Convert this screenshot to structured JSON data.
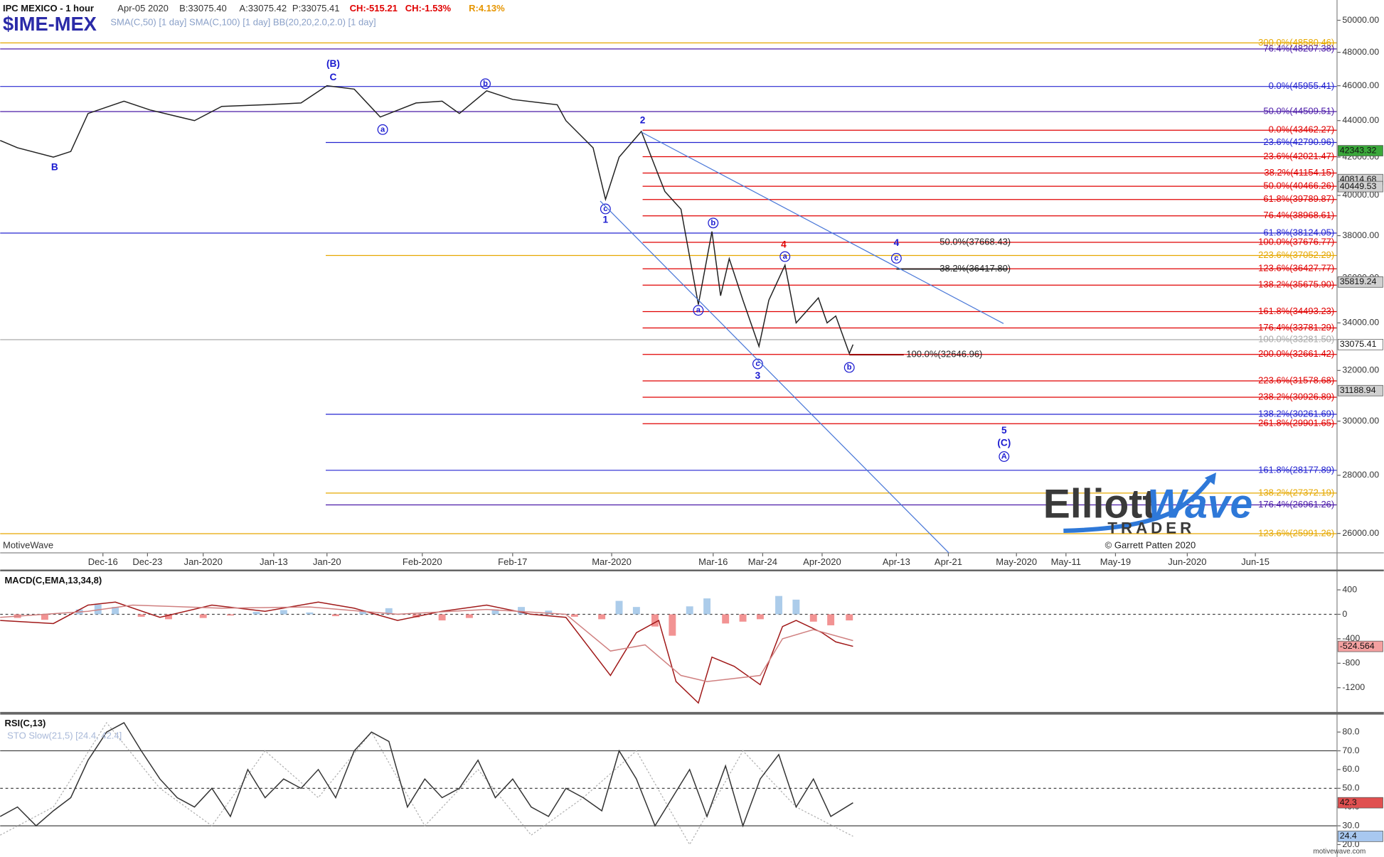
{
  "header": {
    "title": "IPC MEXICO - 1 hour",
    "date": "Apr-05 2020",
    "bid": "B:33075.40",
    "ask": "A:33075.42",
    "price": "P:33075.41",
    "change": "CH:-515.21",
    "change_pct": "CH:-1.53%",
    "range": "R:4.13%",
    "symbol": "$IME-MEX",
    "studies": "SMA(C,50) [1 day] SMA(C,100) [1 day] BB(20,20,2.0,2.0) [1 day]"
  },
  "watermark": "MotiveWave",
  "logo": {
    "elliott": "Elliott",
    "wave": "Wave",
    "trader": "TRADER"
  },
  "copyright": "© Garrett Patten 2020",
  "site": "motivewave.com",
  "chart_data": [
    {
      "type": "line",
      "log": true,
      "xlim": [
        0,
        1080
      ],
      "xticks": [
        {
          "value": 83,
          "label": "Dec-16"
        },
        {
          "value": 119,
          "label": "Dec-23"
        },
        {
          "value": 164,
          "label": "Jan-2020"
        },
        {
          "value": 221,
          "label": "Jan-13"
        },
        {
          "value": 264,
          "label": "Jan-20"
        },
        {
          "value": 341,
          "label": "Feb-2020"
        },
        {
          "value": 414,
          "label": "Feb-17"
        },
        {
          "value": 494,
          "label": "Mar-2020"
        },
        {
          "value": 576,
          "label": "Mar-16"
        },
        {
          "value": 616,
          "label": "Mar-24"
        },
        {
          "value": 664,
          "label": "Apr-2020"
        },
        {
          "value": 724,
          "label": "Apr-13"
        },
        {
          "value": 766,
          "label": "Apr-21"
        },
        {
          "value": 821,
          "label": "May-2020"
        },
        {
          "value": 861,
          "label": "May-11"
        },
        {
          "value": 901,
          "label": "May-19"
        },
        {
          "value": 959,
          "label": "Jun-2020"
        },
        {
          "value": 1014,
          "label": "Jun-15"
        }
      ],
      "ylim": [
        25365,
        51309
      ],
      "yticks": [
        {
          "value": 26000,
          "label": "26000.00"
        },
        {
          "value": 28000,
          "label": "28000.00"
        },
        {
          "value": 30000,
          "label": "30000.00"
        },
        {
          "value": 32000,
          "label": "32000.00"
        },
        {
          "value": 34000,
          "label": "34000.00"
        },
        {
          "value": 36000,
          "label": "36000.00"
        },
        {
          "value": 38000,
          "label": "38000.00"
        },
        {
          "value": 40000,
          "label": "40000.00"
        },
        {
          "value": 42000,
          "label": "42000.00"
        },
        {
          "value": 44000,
          "label": "44000.00"
        },
        {
          "value": 46000,
          "label": "46000.00"
        },
        {
          "value": 48000,
          "label": "48000.00"
        },
        {
          "value": 50000,
          "label": "50000.00"
        }
      ],
      "series": [
        {
          "style": "line",
          "color": "#222222",
          "x": [
            0,
            14,
            43,
            57,
            71,
            100,
            121,
            157,
            179,
            214,
            243,
            264,
            286,
            307,
            336,
            357,
            371,
            393,
            414,
            450,
            457,
            479,
            489,
            500,
            518,
            532,
            537,
            550,
            564,
            575,
            582,
            589,
            600,
            613,
            621,
            634,
            643,
            661,
            668,
            675,
            686,
            689
          ],
          "values": [
            42900,
            42500,
            42000,
            42300,
            44400,
            45100,
            44600,
            44000,
            44800,
            44900,
            45000,
            46000,
            45800,
            44200,
            45000,
            45100,
            44400,
            45700,
            45200,
            44900,
            44000,
            42500,
            39800,
            42000,
            43400,
            41000,
            40200,
            39300,
            34800,
            38200,
            35200,
            36900,
            35000,
            33000,
            35000,
            36600,
            34000,
            35100,
            34000,
            34300,
            32700,
            33075.41
          ]
        }
      ],
      "levels": [
        {
          "value": 48580.46,
          "label": "300.0%(48580.46)",
          "color": "#e6a800",
          "from": 0
        },
        {
          "value": 48207.38,
          "label": "76.4%(48207.38)",
          "color": "#4b1aa8",
          "from": 0
        },
        {
          "value": 45955.41,
          "label": "0.0%(45955.41)",
          "color": "#2424d0",
          "from": 0
        },
        {
          "value": 44509.51,
          "label": "50.0%(44509.51)",
          "color": "#4b1aa8",
          "from": 0
        },
        {
          "value": 43462.27,
          "label": "0.0%(43462.27)",
          "color": "#e00000",
          "from": 519
        },
        {
          "value": 42790.96,
          "label": "23.6%(42790.96)",
          "color": "#2424d0",
          "from": 263
        },
        {
          "value": 42021.47,
          "label": "23.6%(42021.47)",
          "color": "#e00000",
          "from": 519
        },
        {
          "value": 41154.15,
          "label": "38.2%(41154.15)",
          "color": "#e00000",
          "from": 519
        },
        {
          "value": 40466.26,
          "label": "50.0%(40466.26)",
          "color": "#e00000",
          "from": 519
        },
        {
          "value": 39789.87,
          "label": "61.8%(39789.87)",
          "color": "#e00000",
          "from": 519
        },
        {
          "value": 38968.61,
          "label": "76.4%(38968.61)",
          "color": "#e00000",
          "from": 519
        },
        {
          "value": 38124.05,
          "label": "61.8%(38124.05)",
          "color": "#2424d0",
          "from": 0
        },
        {
          "value": 37676.77,
          "label": "100.0%(37676.77)",
          "color": "#e00000",
          "from": 519
        },
        {
          "value": 37052.29,
          "label": "223.6%(37052.29)",
          "color": "#e6a800",
          "from": 263
        },
        {
          "value": 36427.77,
          "label": "123.6%(36427.77)",
          "color": "#e00000",
          "from": 519
        },
        {
          "value": 35675.9,
          "label": "138.2%(35675.90)",
          "color": "#e00000",
          "from": 519
        },
        {
          "value": 34493.23,
          "label": "161.8%(34493.23)",
          "color": "#e00000",
          "from": 519
        },
        {
          "value": 33781.29,
          "label": "176.4%(33781.29)",
          "color": "#e00000",
          "from": 519
        },
        {
          "value": 33281.5,
          "label": "100.0%(33281.50)",
          "color": "#aaaaaa",
          "from": 0
        },
        {
          "value": 32661.42,
          "label": "200.0%(32661.42)",
          "color": "#e00000",
          "from": 519
        },
        {
          "value": 31578.68,
          "label": "223.6%(31578.68)",
          "color": "#e00000",
          "from": 519
        },
        {
          "value": 30926.89,
          "label": "238.2%(30926.89)",
          "color": "#e00000",
          "from": 519
        },
        {
          "value": 30261.69,
          "label": "138.2%(30261.69)",
          "color": "#2424d0",
          "from": 263
        },
        {
          "value": 29901.65,
          "label": "261.8%(29901.65)",
          "color": "#e00000",
          "from": 519
        },
        {
          "value": 28177.89,
          "label": "161.8%(28177.89)",
          "color": "#2424d0",
          "from": 263
        },
        {
          "value": 27372.19,
          "label": "138.2%(27372.19)",
          "color": "#e6a800",
          "from": 263
        },
        {
          "value": 26961.26,
          "label": "176.4%(26961.26)",
          "color": "#4b1aa8",
          "from": 263
        },
        {
          "value": 25991.26,
          "label": "123.6%(25991.26)",
          "color": "#e6a800",
          "from": 0
        }
      ],
      "annotations": [
        {
          "value": 37668.43,
          "label": "50.0%(37668.43)",
          "x": 759
        },
        {
          "value": 36417.8,
          "label": "38.2%(36417.80)",
          "x": 759,
          "line": [
            724,
            814
          ],
          "color": "#222222"
        },
        {
          "value": 32646.96,
          "label": "100.0%(32646.96)",
          "x": 732,
          "line": [
            686,
            730
          ],
          "color": "#8b0000"
        }
      ],
      "waves": [
        {
          "text": "(B)",
          "x": 269,
          "y": 47269,
          "color": "#1a1ad0"
        },
        {
          "text": "C",
          "x": 269,
          "y": 46479,
          "color": "#1a1ad0"
        },
        {
          "text": "B",
          "x": 44,
          "y": 41437,
          "color": "#1a1ad0"
        },
        {
          "text": "2",
          "x": 519,
          "y": 43990,
          "color": "#1a1ad0"
        },
        {
          "text": "1",
          "x": 489,
          "y": 38747,
          "color": "#1a1ad0"
        },
        {
          "text": "3",
          "x": 612,
          "y": 31763,
          "color": "#1a1ad0"
        },
        {
          "text": "4",
          "x": 633,
          "y": 37548,
          "color": "#e00000"
        },
        {
          "text": "4",
          "x": 724,
          "y": 37634,
          "color": "#1a1ad0"
        },
        {
          "text": "5",
          "x": 811,
          "y": 29623,
          "color": "#1a1ad0"
        },
        {
          "text": "(C)",
          "x": 811,
          "y": 29161,
          "color": "#1a1ad0"
        },
        {
          "text": "A",
          "x": 811,
          "y": 28675,
          "color": "#1a1ad0",
          "circled": true
        },
        {
          "text": "a",
          "x": 309,
          "y": 43499,
          "color": "#1a1ad0",
          "circled": true
        },
        {
          "text": "b",
          "x": 392,
          "y": 46114,
          "color": "#1a1ad0",
          "circled": true
        },
        {
          "text": "c",
          "x": 489,
          "y": 39316,
          "color": "#1a1ad0",
          "circled": true
        },
        {
          "text": "b",
          "x": 576,
          "y": 38617,
          "color": "#1a1ad0",
          "circled": true
        },
        {
          "text": "a",
          "x": 564,
          "y": 34548,
          "color": "#1a1ad0",
          "circled": true
        },
        {
          "text": "a",
          "x": 634,
          "y": 36999,
          "color": "#1a1ad0",
          "circled": true
        },
        {
          "text": "c",
          "x": 612,
          "y": 32268,
          "color": "#1a1ad0",
          "circled": true
        },
        {
          "text": "b",
          "x": 686,
          "y": 32123,
          "color": "#1a1ad0",
          "circled": true
        },
        {
          "text": "c",
          "x": 724,
          "y": 36918,
          "color": "#1a1ad0",
          "circled": true
        }
      ],
      "tags": [
        {
          "value": 42343.32,
          "color": "#3aa83a"
        },
        {
          "value": 40814.68,
          "color": "#d0d0d0"
        },
        {
          "value": 40449.53,
          "color": "#d0d0d0"
        },
        {
          "value": 35819.24,
          "color": "#d0d0d0"
        },
        {
          "value": 33075.41,
          "color": "#ffffff"
        },
        {
          "value": 31188.94,
          "color": "#d0d0d0"
        }
      ]
    },
    {
      "type": "line",
      "title": "MACD(C,EMA,13,34,8)",
      "ylim": [
        -1604,
        674
      ],
      "yticks": [
        400,
        0,
        -400,
        -800,
        -1200
      ],
      "hlines": [
        0
      ],
      "series": [
        {
          "style": "histogram",
          "color": "#9ec3e6",
          "negative_color": "#f08080",
          "x": [
            14,
            36,
            64,
            79,
            93,
            114,
            136,
            164,
            186,
            207,
            229,
            250,
            271,
            293,
            314,
            336,
            357,
            379,
            400,
            421,
            443,
            464,
            486,
            500,
            514,
            529,
            543,
            557,
            571,
            586,
            600,
            614,
            629,
            643,
            657,
            671,
            686
          ],
          "values": [
            -60,
            -90,
            80,
            160,
            120,
            -40,
            -80,
            -60,
            -20,
            40,
            70,
            30,
            -30,
            60,
            100,
            -50,
            -100,
            -60,
            80,
            120,
            60,
            -40,
            -80,
            220,
            120,
            -200,
            -350,
            130,
            260,
            -150,
            -120,
            -80,
            300,
            240,
            -120,
            -180,
            -100
          ]
        },
        {
          "style": "line",
          "color": "#a01818",
          "x": [
            0,
            43,
            71,
            93,
            129,
            171,
            214,
            257,
            286,
            321,
            357,
            393,
            429,
            457,
            493,
            514,
            532,
            546,
            564,
            575,
            593,
            614,
            632,
            643,
            664,
            675,
            689
          ],
          "values": [
            -100,
            -150,
            150,
            200,
            -50,
            150,
            50,
            200,
            100,
            -100,
            50,
            150,
            0,
            -50,
            -1000,
            -300,
            -100,
            -1100,
            -1450,
            -700,
            -850,
            -1150,
            -200,
            -100,
            -300,
            -450,
            -524.564
          ]
        },
        {
          "style": "line",
          "color": "#d08080",
          "x": [
            0,
            71,
            107,
            179,
            250,
            321,
            393,
            457,
            493,
            521,
            550,
            571,
            614,
            632,
            657,
            689
          ],
          "values": [
            -50,
            50,
            150,
            100,
            120,
            0,
            80,
            0,
            -600,
            -500,
            -1000,
            -1100,
            -1000,
            -400,
            -250,
            -430
          ]
        }
      ],
      "tags": [
        {
          "value": -524.564,
          "color": "#f4a0a0"
        }
      ]
    },
    {
      "type": "line",
      "title": "RSI(C,13)",
      "subtitle": "STO Slow(21,5) [24.4, 42.4]",
      "ylim": [
        14.3,
        88.6
      ],
      "yticks": [
        {
          "value": 80,
          "label": "80.0"
        },
        {
          "value": 70,
          "label": "70.0"
        },
        {
          "value": 60,
          "label": "60.0"
        },
        {
          "value": 50,
          "label": "50.0"
        },
        {
          "value": 40,
          "label": "40.0"
        },
        {
          "value": 30,
          "label": "30.0"
        },
        {
          "value": 20,
          "label": "20.0"
        }
      ],
      "hlines": [
        70,
        50,
        30
      ],
      "series": [
        {
          "style": "dotted",
          "color": "#b0b0b0",
          "x": [
            0,
            43,
            86,
            129,
            171,
            214,
            257,
            300,
            343,
            386,
            429,
            471,
            514,
            557,
            600,
            643,
            689
          ],
          "values": [
            25,
            40,
            85,
            50,
            30,
            70,
            45,
            80,
            30,
            60,
            25,
            45,
            70,
            20,
            70,
            40,
            24.4
          ]
        },
        {
          "style": "line",
          "color": "#333333",
          "x": [
            0,
            14,
            29,
            43,
            57,
            71,
            86,
            100,
            114,
            129,
            143,
            157,
            171,
            186,
            200,
            214,
            229,
            243,
            257,
            271,
            286,
            300,
            314,
            329,
            343,
            357,
            371,
            386,
            400,
            414,
            429,
            443,
            457,
            471,
            486,
            500,
            514,
            529,
            543,
            557,
            571,
            586,
            600,
            614,
            629,
            643,
            657,
            671,
            689
          ],
          "values": [
            35,
            40,
            30,
            38,
            45,
            65,
            80,
            85,
            70,
            55,
            45,
            40,
            50,
            35,
            60,
            45,
            55,
            50,
            60,
            45,
            70,
            80,
            75,
            40,
            55,
            45,
            50,
            65,
            45,
            55,
            40,
            35,
            50,
            45,
            38,
            70,
            55,
            30,
            45,
            60,
            35,
            62,
            30,
            55,
            68,
            40,
            55,
            35,
            42.3
          ]
        }
      ],
      "tags": [
        {
          "value": 42.3,
          "color": "#e05050"
        },
        {
          "value": 24.4,
          "color": "#a8c8f0"
        }
      ]
    }
  ]
}
